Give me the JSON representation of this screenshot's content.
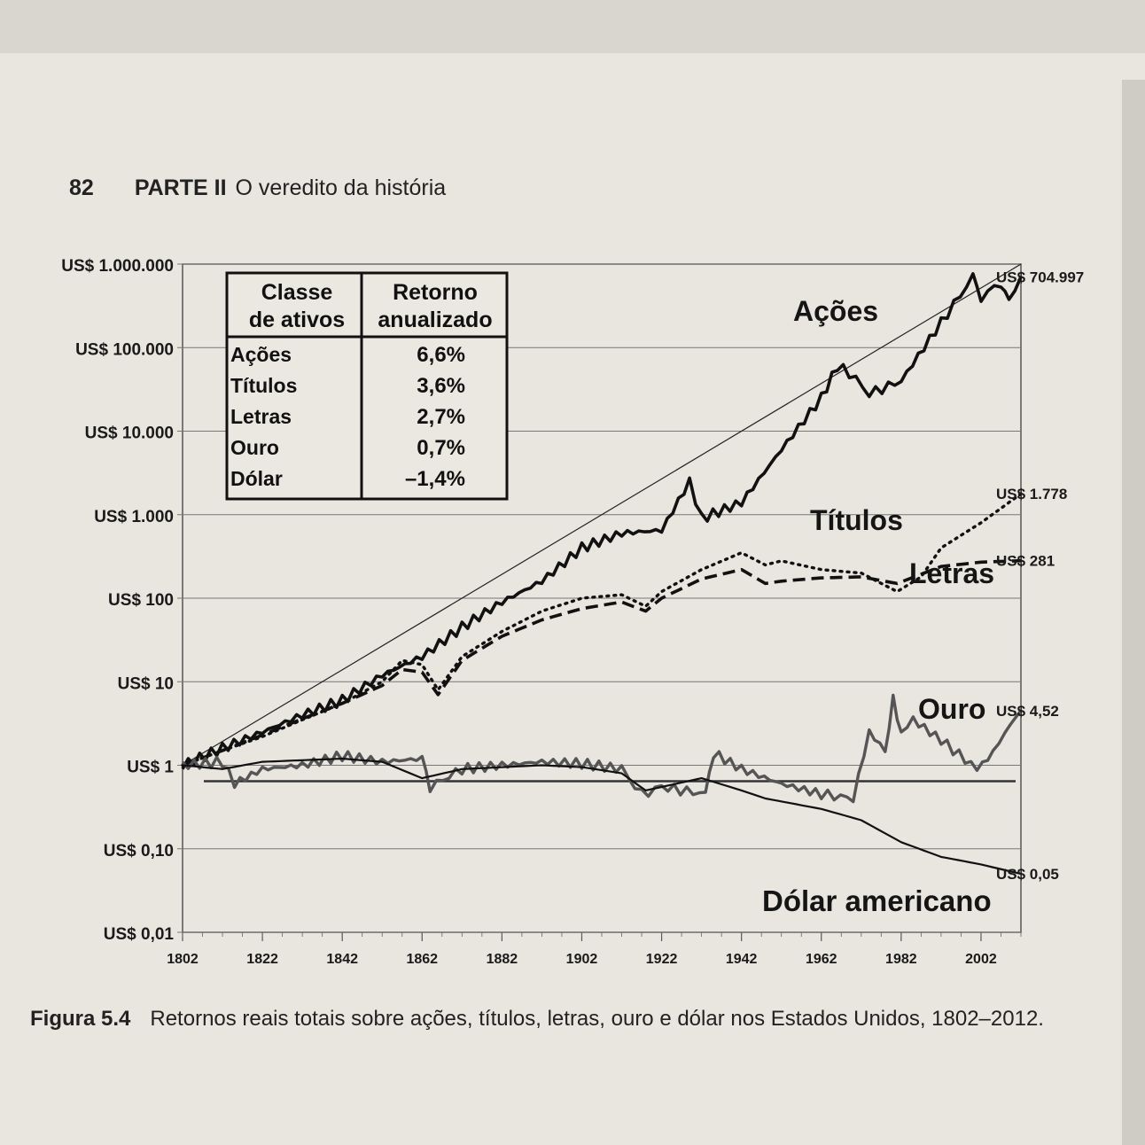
{
  "page": {
    "number": "82",
    "part": "PARTE II",
    "part_title": "O veredito da história"
  },
  "caption": {
    "label": "Figura 5.4",
    "text": "Retornos reais totais sobre ações, títulos, letras, ouro e dólar nos Estados Unidos, 1802–2012."
  },
  "chart_data": {
    "type": "line",
    "title": "",
    "xlabel": "",
    "ylabel": "",
    "y_scale": "log",
    "xlim": [
      1802,
      2012
    ],
    "ylim": [
      0.01,
      1000000
    ],
    "x_ticks": [
      "1802",
      "1822",
      "1842",
      "1862",
      "1882",
      "1902",
      "1922",
      "1942",
      "1962",
      "1982",
      "2002"
    ],
    "y_ticks": [
      {
        "value": 1000000,
        "label": "US$ 1.000.000"
      },
      {
        "value": 100000,
        "label": "US$ 100.000"
      },
      {
        "value": 10000,
        "label": "US$ 10.000"
      },
      {
        "value": 1000,
        "label": "US$ 1.000"
      },
      {
        "value": 100,
        "label": "US$ 100"
      },
      {
        "value": 10,
        "label": "US$ 10"
      },
      {
        "value": 1,
        "label": "US$ 1"
      },
      {
        "value": 0.1,
        "label": "US$ 0,10"
      },
      {
        "value": 0.01,
        "label": "US$ 0,01"
      }
    ],
    "grid": true,
    "series": [
      {
        "name": "Ações",
        "style": "solid-thick",
        "end_label": "US$ 704.997",
        "points": [
          [
            1802,
            1
          ],
          [
            1812,
            1.6
          ],
          [
            1822,
            2.5
          ],
          [
            1832,
            4
          ],
          [
            1842,
            6
          ],
          [
            1852,
            12
          ],
          [
            1862,
            20
          ],
          [
            1872,
            45
          ],
          [
            1882,
            90
          ],
          [
            1892,
            160
          ],
          [
            1902,
            400
          ],
          [
            1912,
            600
          ],
          [
            1922,
            650
          ],
          [
            1929,
            2500
          ],
          [
            1932,
            900
          ],
          [
            1942,
            1400
          ],
          [
            1952,
            6000
          ],
          [
            1962,
            25000
          ],
          [
            1966,
            60000
          ],
          [
            1969,
            50000
          ],
          [
            1974,
            28000
          ],
          [
            1982,
            40000
          ],
          [
            1992,
            200000
          ],
          [
            2000,
            700000
          ],
          [
            2002,
            400000
          ],
          [
            2007,
            600000
          ],
          [
            2009,
            350000
          ],
          [
            2012,
            704997
          ]
        ]
      },
      {
        "name": "Títulos",
        "style": "dotted",
        "end_label": "US$ 1.778",
        "points": [
          [
            1802,
            1
          ],
          [
            1812,
            1.5
          ],
          [
            1822,
            2.2
          ],
          [
            1832,
            3.5
          ],
          [
            1842,
            5.5
          ],
          [
            1852,
            10
          ],
          [
            1857,
            18
          ],
          [
            1862,
            16
          ],
          [
            1866,
            8
          ],
          [
            1872,
            20
          ],
          [
            1882,
            40
          ],
          [
            1892,
            70
          ],
          [
            1902,
            100
          ],
          [
            1912,
            110
          ],
          [
            1918,
            80
          ],
          [
            1922,
            120
          ],
          [
            1932,
            220
          ],
          [
            1942,
            350
          ],
          [
            1948,
            250
          ],
          [
            1952,
            280
          ],
          [
            1962,
            220
          ],
          [
            1972,
            200
          ],
          [
            1981,
            120
          ],
          [
            1987,
            180
          ],
          [
            1992,
            400
          ],
          [
            2002,
            800
          ],
          [
            2012,
            1778
          ]
        ]
      },
      {
        "name": "Letras",
        "style": "dashed",
        "end_label": "US$ 281",
        "points": [
          [
            1802,
            1
          ],
          [
            1812,
            1.5
          ],
          [
            1822,
            2.3
          ],
          [
            1832,
            3.6
          ],
          [
            1842,
            5.5
          ],
          [
            1852,
            9
          ],
          [
            1857,
            14
          ],
          [
            1862,
            13
          ],
          [
            1866,
            7
          ],
          [
            1872,
            18
          ],
          [
            1882,
            35
          ],
          [
            1892,
            55
          ],
          [
            1902,
            75
          ],
          [
            1912,
            90
          ],
          [
            1918,
            70
          ],
          [
            1922,
            100
          ],
          [
            1932,
            170
          ],
          [
            1942,
            220
          ],
          [
            1948,
            150
          ],
          [
            1952,
            160
          ],
          [
            1962,
            175
          ],
          [
            1972,
            180
          ],
          [
            1981,
            150
          ],
          [
            1992,
            240
          ],
          [
            2002,
            270
          ],
          [
            2012,
            281
          ]
        ]
      },
      {
        "name": "Ouro",
        "style": "solid-gray",
        "end_label": "US$ 4,52",
        "points": [
          [
            1802,
            1
          ],
          [
            1812,
            1.1
          ],
          [
            1815,
            0.6
          ],
          [
            1822,
            0.9
          ],
          [
            1832,
            1.0
          ],
          [
            1842,
            1.3
          ],
          [
            1852,
            1.1
          ],
          [
            1862,
            1.2
          ],
          [
            1864,
            0.55
          ],
          [
            1872,
            0.9
          ],
          [
            1882,
            1.0
          ],
          [
            1892,
            1.1
          ],
          [
            1902,
            1.05
          ],
          [
            1912,
            0.9
          ],
          [
            1917,
            0.45
          ],
          [
            1922,
            0.55
          ],
          [
            1933,
            0.45
          ],
          [
            1935,
            1.4
          ],
          [
            1942,
            0.9
          ],
          [
            1952,
            0.6
          ],
          [
            1962,
            0.45
          ],
          [
            1970,
            0.4
          ],
          [
            1974,
            2.5
          ],
          [
            1978,
            1.5
          ],
          [
            1980,
            6
          ],
          [
            1982,
            2.5
          ],
          [
            1985,
            3.5
          ],
          [
            1992,
            2
          ],
          [
            2001,
            0.9
          ],
          [
            2005,
            1.4
          ],
          [
            2008,
            2.5
          ],
          [
            2012,
            4.52
          ]
        ]
      },
      {
        "name": "Dólar americano",
        "style": "solid-thin",
        "end_label": "US$ 0,05",
        "points": [
          [
            1802,
            1
          ],
          [
            1812,
            0.9
          ],
          [
            1822,
            1.1
          ],
          [
            1842,
            1.2
          ],
          [
            1852,
            1.1
          ],
          [
            1862,
            0.7
          ],
          [
            1872,
            0.9
          ],
          [
            1892,
            1.0
          ],
          [
            1902,
            0.95
          ],
          [
            1912,
            0.8
          ],
          [
            1918,
            0.5
          ],
          [
            1922,
            0.55
          ],
          [
            1932,
            0.7
          ],
          [
            1942,
            0.5
          ],
          [
            1948,
            0.4
          ],
          [
            1962,
            0.3
          ],
          [
            1972,
            0.22
          ],
          [
            1982,
            0.12
          ],
          [
            1992,
            0.08
          ],
          [
            2002,
            0.065
          ],
          [
            2012,
            0.05
          ]
        ]
      }
    ],
    "series_labels": [
      "Ações",
      "Títulos",
      "Letras",
      "Ouro",
      "Dólar americano"
    ],
    "inset_table": {
      "headers": [
        "Classe de ativos",
        "Retorno anualizado"
      ],
      "header_lines": [
        [
          "Classe",
          "de ativos"
        ],
        [
          "Retorno",
          "anualizado"
        ]
      ],
      "rows": [
        {
          "asset": "Ações",
          "return": "6,6%"
        },
        {
          "asset": "Títulos",
          "return": "3,6%"
        },
        {
          "asset": "Letras",
          "return": "2,7%"
        },
        {
          "asset": "Ouro",
          "return": "0,7%"
        },
        {
          "asset": "Dólar",
          "return": "–1,4%"
        }
      ]
    }
  }
}
